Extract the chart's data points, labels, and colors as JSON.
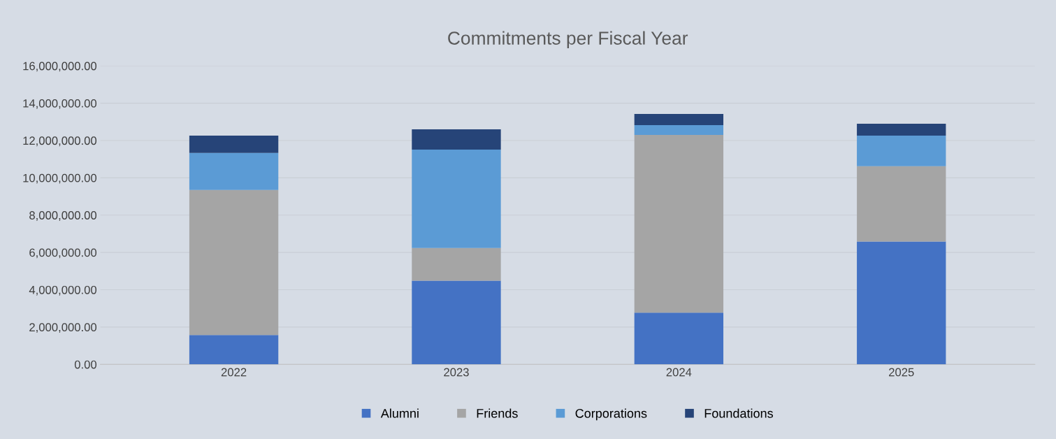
{
  "chart_data": {
    "type": "bar",
    "title": "Commitments per Fiscal Year",
    "stacked": true,
    "categories": [
      "2022",
      "2023",
      "2024",
      "2025"
    ],
    "series": [
      {
        "name": "Alumni",
        "color": "#4472c4",
        "values": [
          1570000,
          4490000,
          2770000,
          6580000
        ]
      },
      {
        "name": "Friends",
        "color": "#a5a5a5",
        "values": [
          7780000,
          1750000,
          9530000,
          4040000
        ]
      },
      {
        "name": "Corporations",
        "color": "#5b9bd5",
        "values": [
          1980000,
          5270000,
          520000,
          1640000
        ]
      },
      {
        "name": "Foundations",
        "color": "#264478",
        "values": [
          930000,
          1090000,
          600000,
          640000
        ]
      }
    ],
    "ylim": [
      0,
      16000000
    ],
    "yticks": [
      {
        "value": 0,
        "label": "0.00"
      },
      {
        "value": 2000000,
        "label": "2,000,000.00"
      },
      {
        "value": 4000000,
        "label": "4,000,000.00"
      },
      {
        "value": 6000000,
        "label": "6,000,000.00"
      },
      {
        "value": 8000000,
        "label": "8,000,000.00"
      },
      {
        "value": 10000000,
        "label": "10,000,000.00"
      },
      {
        "value": 12000000,
        "label": "12,000,000.00"
      },
      {
        "value": 14000000,
        "label": "14,000,000.00"
      },
      {
        "value": 16000000,
        "label": "16,000,000.00"
      }
    ],
    "grid": "y",
    "legend": "bottom"
  }
}
